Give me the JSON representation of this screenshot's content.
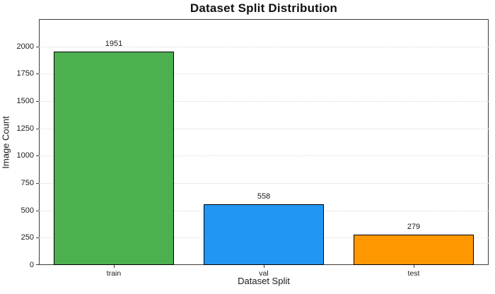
{
  "chart_data": {
    "type": "bar",
    "title": "Dataset Split Distribution",
    "xlabel": "Dataset Split",
    "ylabel": "Image Count",
    "categories": [
      "train",
      "val",
      "test"
    ],
    "values": [
      1951,
      558,
      279
    ],
    "value_labels": [
      "1951",
      "558",
      "279"
    ],
    "bar_colors": [
      "#4caf50",
      "#2196f3",
      "#ff9800"
    ],
    "bar_edge_color": "#000000",
    "yticks": [
      0,
      250,
      500,
      750,
      1000,
      1250,
      1500,
      1750,
      2000
    ],
    "ylim": [
      0,
      2250
    ],
    "grid": "horizontal dotted gridlines at y ticks",
    "gridline_color": "#d9d9d9",
    "spine_color": "#3c3c3c",
    "legend": "none"
  }
}
